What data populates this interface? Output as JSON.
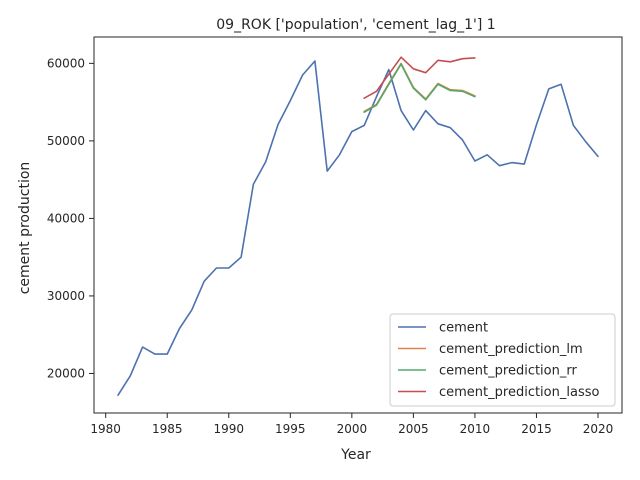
{
  "chart_data": {
    "type": "line",
    "title": "09_ROK ['population', 'cement_lag_1'] 1",
    "xlabel": "Year",
    "ylabel": "cement production",
    "xlim": [
      1979.05,
      2021.95
    ],
    "ylim": [
      14900,
      63400
    ],
    "xticks": [
      1980,
      1985,
      1990,
      1995,
      2000,
      2005,
      2010,
      2015,
      2020
    ],
    "xtick_labels": [
      "1980",
      "1985",
      "1990",
      "1995",
      "2000",
      "2005",
      "2010",
      "2015",
      "2020"
    ],
    "yticks": [
      20000,
      30000,
      40000,
      50000,
      60000
    ],
    "ytick_labels": [
      "20000",
      "30000",
      "40000",
      "50000",
      "60000"
    ],
    "grid": false,
    "legend_position": "lower-right",
    "series": [
      {
        "name": "cement",
        "color": "#4c72b0",
        "x": [
          1981,
          1982,
          1983,
          1984,
          1985,
          1986,
          1987,
          1988,
          1989,
          1990,
          1991,
          1992,
          1993,
          1994,
          1995,
          1996,
          1997,
          1998,
          1999,
          2000,
          2001,
          2002,
          2003,
          2004,
          2005,
          2006,
          2007,
          2008,
          2009,
          2010,
          2011,
          2012,
          2013,
          2014,
          2015,
          2016,
          2017,
          2018,
          2019,
          2020
        ],
        "y": [
          17200,
          19700,
          23400,
          22500,
          22500,
          25800,
          28200,
          31900,
          33600,
          33600,
          35000,
          44400,
          47300,
          52100,
          55200,
          58500,
          60300,
          46100,
          48200,
          51200,
          52000,
          55700,
          59200,
          53900,
          51400,
          53900,
          52200,
          51700,
          50100,
          47400,
          48200,
          46800,
          47200,
          47000,
          52100,
          56700,
          57300,
          52000,
          49900,
          48000
        ]
      },
      {
        "name": "cement_prediction_lm",
        "color": "#dd8452",
        "x": [
          2001,
          2002,
          2003,
          2004,
          2005,
          2006,
          2007,
          2008,
          2009,
          2010
        ],
        "y": [
          53800,
          54700,
          57400,
          60000,
          56900,
          55400,
          57400,
          56600,
          56500,
          55800
        ]
      },
      {
        "name": "cement_prediction_rr",
        "color": "#55a868",
        "x": [
          2001,
          2002,
          2003,
          2004,
          2005,
          2006,
          2007,
          2008,
          2009,
          2010
        ],
        "y": [
          53700,
          54600,
          57300,
          59900,
          56800,
          55300,
          57300,
          56500,
          56400,
          55700
        ]
      },
      {
        "name": "cement_prediction_lasso",
        "color": "#c44e52",
        "x": [
          2001,
          2002,
          2003,
          2004,
          2005,
          2006,
          2007,
          2008,
          2009,
          2010
        ],
        "y": [
          55500,
          56400,
          58600,
          60800,
          59300,
          58800,
          60400,
          60200,
          60600,
          60700
        ]
      }
    ]
  }
}
